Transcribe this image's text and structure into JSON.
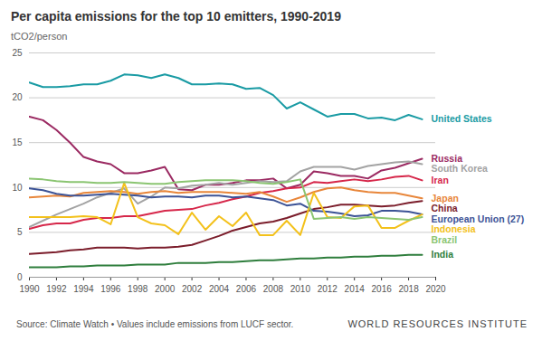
{
  "chart_data": {
    "type": "line",
    "title": "Per capita emissions for the top 10 emitters, 1990-2019",
    "subtitle": "tCO2/person",
    "caption": "Source: Climate Watch • Values include emissions from LUCF sector.",
    "credit": "WORLD RESOURCES INSTITUTE",
    "x": [
      1990,
      1991,
      1992,
      1993,
      1994,
      1995,
      1996,
      1997,
      1998,
      1999,
      2000,
      2001,
      2002,
      2003,
      2004,
      2005,
      2006,
      2007,
      2008,
      2009,
      2010,
      2011,
      2012,
      2013,
      2014,
      2015,
      2016,
      2017,
      2018,
      2019
    ],
    "xlim": [
      1990,
      2020
    ],
    "xticks": [
      1990,
      1992,
      1994,
      1996,
      1998,
      2000,
      2002,
      2004,
      2006,
      2008,
      2010,
      2012,
      2014,
      2016,
      2018,
      2020
    ],
    "ylim": [
      0,
      25
    ],
    "yticks": [
      0,
      5,
      10,
      15,
      20,
      25
    ],
    "grid": true,
    "series": [
      {
        "name": "United States",
        "color": "#1a9ba4",
        "values": [
          21.7,
          21.2,
          21.2,
          21.3,
          21.5,
          21.5,
          21.9,
          22.6,
          22.5,
          22.2,
          22.6,
          22.2,
          21.5,
          21.5,
          21.6,
          21.5,
          21.0,
          21.1,
          20.3,
          18.8,
          19.5,
          18.7,
          17.9,
          18.2,
          18.2,
          17.7,
          17.8,
          17.5,
          18.1,
          17.6
        ]
      },
      {
        "name": "Russia",
        "color": "#9b2a62",
        "values": [
          17.9,
          17.5,
          16.4,
          15.0,
          13.4,
          12.9,
          12.6,
          11.6,
          11.6,
          11.9,
          12.3,
          9.8,
          9.7,
          10.3,
          10.3,
          10.5,
          10.8,
          10.8,
          11.0,
          9.9,
          10.3,
          11.8,
          11.6,
          11.3,
          11.3,
          11.0,
          11.9,
          12.2,
          12.7,
          13.2
        ]
      },
      {
        "name": "South Korea",
        "color": "#a3a3a3",
        "values": [
          5.6,
          6.3,
          7.0,
          7.6,
          8.2,
          8.9,
          9.4,
          9.9,
          8.2,
          9.0,
          10.0,
          9.9,
          10.2,
          10.3,
          10.5,
          10.3,
          10.5,
          10.7,
          10.6,
          10.7,
          11.8,
          12.3,
          12.3,
          12.3,
          12.0,
          12.4,
          12.6,
          12.8,
          12.9,
          12.6
        ]
      },
      {
        "name": "Iran",
        "color": "#d6274a",
        "values": [
          5.4,
          5.8,
          6.0,
          6.0,
          6.4,
          6.6,
          6.6,
          6.8,
          6.8,
          7.1,
          7.4,
          7.5,
          7.6,
          8.0,
          8.3,
          8.7,
          9.0,
          9.4,
          9.6,
          9.9,
          10.0,
          10.6,
          10.5,
          10.7,
          10.9,
          10.7,
          10.9,
          11.2,
          11.3,
          10.8
        ]
      },
      {
        "name": "Japan",
        "color": "#e8863a",
        "values": [
          8.9,
          9.0,
          9.1,
          9.0,
          9.4,
          9.5,
          9.6,
          9.5,
          9.3,
          9.5,
          9.6,
          9.4,
          9.5,
          9.5,
          9.5,
          9.4,
          9.3,
          9.5,
          9.0,
          8.4,
          8.9,
          9.5,
          9.9,
          10.0,
          9.7,
          9.5,
          9.4,
          9.4,
          9.1,
          8.8
        ]
      },
      {
        "name": "China",
        "color": "#7b1d2b",
        "values": [
          2.6,
          2.7,
          2.8,
          3.0,
          3.1,
          3.3,
          3.3,
          3.3,
          3.2,
          3.3,
          3.3,
          3.4,
          3.6,
          4.1,
          4.6,
          5.2,
          5.6,
          6.0,
          6.2,
          6.6,
          7.1,
          7.6,
          7.8,
          8.1,
          8.1,
          8.0,
          7.9,
          8.0,
          8.3,
          8.5
        ]
      },
      {
        "name": "European Union (27)",
        "color": "#3c5396",
        "values": [
          9.9,
          9.7,
          9.3,
          9.1,
          9.1,
          9.2,
          9.3,
          9.2,
          9.1,
          8.9,
          9.0,
          9.0,
          8.9,
          9.1,
          9.1,
          8.9,
          9.0,
          8.8,
          8.6,
          8.0,
          8.2,
          7.4,
          7.3,
          7.1,
          6.8,
          6.9,
          7.4,
          7.4,
          7.3,
          7.0
        ]
      },
      {
        "name": "Indonesia",
        "color": "#f3c11b",
        "values": [
          6.7,
          6.7,
          6.7,
          6.7,
          6.8,
          6.7,
          5.9,
          10.5,
          6.7,
          6.0,
          5.8,
          4.8,
          7.2,
          5.3,
          6.8,
          5.7,
          7.2,
          4.7,
          4.7,
          6.3,
          4.7,
          9.4,
          6.7,
          6.6,
          7.9,
          8.0,
          5.5,
          5.5,
          6.3,
          7.0
        ]
      },
      {
        "name": "Brazil",
        "color": "#8bc572",
        "values": [
          11.0,
          10.9,
          10.7,
          10.6,
          10.6,
          10.5,
          10.5,
          10.6,
          10.5,
          10.4,
          10.4,
          10.6,
          10.7,
          10.8,
          10.8,
          10.8,
          10.7,
          10.5,
          10.4,
          10.6,
          10.9,
          6.5,
          6.6,
          6.7,
          6.5,
          6.7,
          6.6,
          6.5,
          6.4,
          6.7
        ]
      },
      {
        "name": "India",
        "color": "#2f7e3d",
        "values": [
          1.1,
          1.1,
          1.1,
          1.2,
          1.2,
          1.3,
          1.3,
          1.3,
          1.4,
          1.4,
          1.4,
          1.6,
          1.6,
          1.6,
          1.7,
          1.7,
          1.8,
          1.9,
          1.9,
          2.0,
          2.1,
          2.1,
          2.2,
          2.2,
          2.3,
          2.3,
          2.4,
          2.4,
          2.5,
          2.5
        ]
      }
    ]
  }
}
